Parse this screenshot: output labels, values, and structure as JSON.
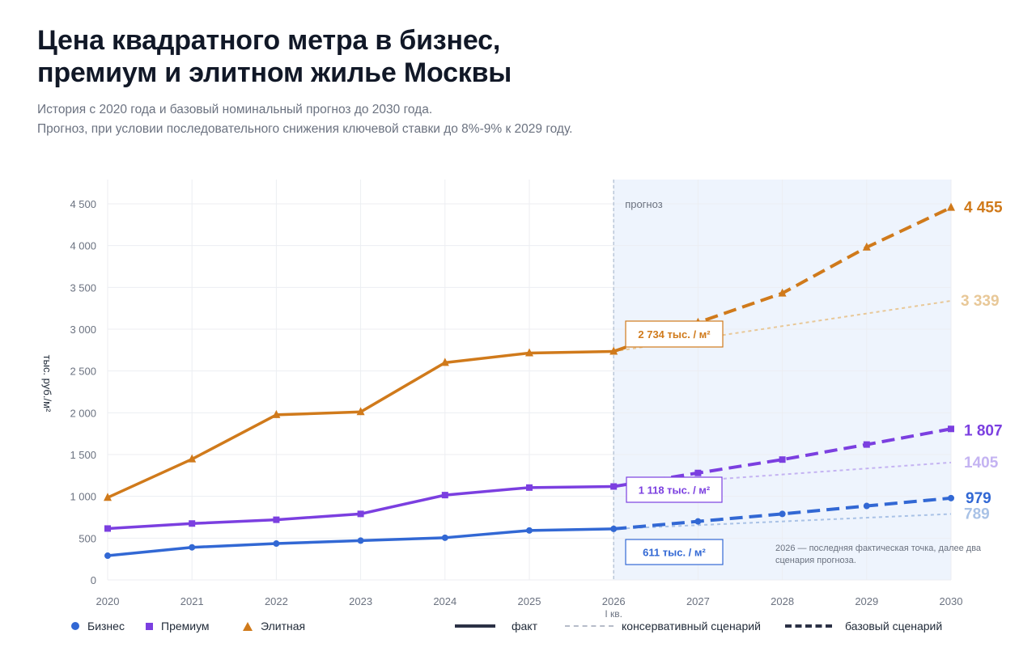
{
  "title_lines": [
    "Цена квадратного метра в бизнес,",
    "премиум и элитном жилье Москвы"
  ],
  "subtitle_lines": [
    "История с 2020 года и базовый номинальный прогноз до 2030 года.",
    "Прогноз, при условии последовательного снижения ключевой ставки до 8%-9% к 2029 году."
  ],
  "colors": {
    "business": "#3268d4",
    "business_light": "#a9c2e6",
    "premium": "#7b3fe0",
    "premium_light": "#c4b3f2",
    "elite": "#d07a1b",
    "elite_light": "#e8c898",
    "forecast_bg": "#eef4fd",
    "grid": "#eceef2"
  },
  "chart_data": {
    "type": "line",
    "ylabel": "тыс. руб./м²",
    "ylim": [
      0,
      4500
    ],
    "yticks": [
      0,
      500,
      1000,
      1500,
      2000,
      2500,
      3000,
      3500,
      4000,
      4500
    ],
    "ytick_labels": [
      "0",
      "500",
      "1 000",
      "1 500",
      "2 000",
      "2 500",
      "3 000",
      "3 500",
      "4 000",
      "4 500"
    ],
    "xlim": [
      2020,
      2030
    ],
    "xticks": [
      2020,
      2021,
      2022,
      2023,
      2024,
      2025,
      2026,
      2027,
      2028,
      2029,
      2030
    ],
    "xtick_labels": [
      "2020",
      "2021",
      "2022",
      "2023",
      "2024",
      "2025",
      "2026",
      "2027",
      "2028",
      "2029",
      "2030"
    ],
    "xtick_sublabel": {
      "x": 2026,
      "text": "I кв."
    },
    "forecast_start": 2026,
    "forecast_label": "прогноз",
    "grid": true,
    "legend_position": "bottom",
    "series": [
      {
        "name": "Бизнес",
        "color_key": "business",
        "marker": "circle",
        "fact": [
          [
            2020,
            290
          ],
          [
            2021,
            390
          ],
          [
            2022,
            435
          ],
          [
            2023,
            470
          ],
          [
            2024,
            505
          ],
          [
            2025,
            592
          ],
          [
            2026,
            611
          ]
        ],
        "base": [
          [
            2026,
            611
          ],
          [
            2027,
            700
          ],
          [
            2028,
            790
          ],
          [
            2029,
            885
          ],
          [
            2030,
            979
          ]
        ],
        "conservative": [
          [
            2026,
            611
          ],
          [
            2030,
            789
          ]
        ],
        "base_end_label": "979",
        "conservative_end_label": "789",
        "box_label": "611 тыс. / м²"
      },
      {
        "name": "Премиум",
        "color_key": "premium",
        "marker": "square",
        "fact": [
          [
            2020,
            615
          ],
          [
            2021,
            675
          ],
          [
            2022,
            720
          ],
          [
            2023,
            790
          ],
          [
            2024,
            1015
          ],
          [
            2025,
            1105
          ],
          [
            2026,
            1118
          ]
        ],
        "base": [
          [
            2026,
            1118
          ],
          [
            2027,
            1280
          ],
          [
            2028,
            1440
          ],
          [
            2029,
            1620
          ],
          [
            2030,
            1807
          ]
        ],
        "conservative": [
          [
            2026,
            1118
          ],
          [
            2030,
            1405
          ]
        ],
        "base_end_label": "1 807",
        "conservative_end_label": "1405",
        "box_label": "1 118 тыс. / м²"
      },
      {
        "name": "Элитная",
        "color_key": "elite",
        "marker": "triangle",
        "fact": [
          [
            2020,
            985
          ],
          [
            2021,
            1445
          ],
          [
            2022,
            1975
          ],
          [
            2023,
            2010
          ],
          [
            2024,
            2600
          ],
          [
            2025,
            2715
          ],
          [
            2026,
            2734
          ]
        ],
        "base": [
          [
            2026,
            2734
          ],
          [
            2027,
            3080
          ],
          [
            2028,
            3430
          ],
          [
            2029,
            3980
          ],
          [
            2030,
            4455
          ]
        ],
        "conservative": [
          [
            2026,
            2734
          ],
          [
            2030,
            3339
          ]
        ],
        "base_end_label": "4 455",
        "conservative_end_label": "3 339",
        "box_label": "2 734 тыс. / м²"
      }
    ],
    "note_lines": [
      "2026 — последняя фактическая точка, далее два",
      "сценария прогноза."
    ]
  },
  "legend": {
    "series": [
      "Бизнес",
      "Премиум",
      "Элитная"
    ],
    "styles": [
      "факт",
      "консервативный сценарий",
      "базовый сценарий"
    ]
  }
}
